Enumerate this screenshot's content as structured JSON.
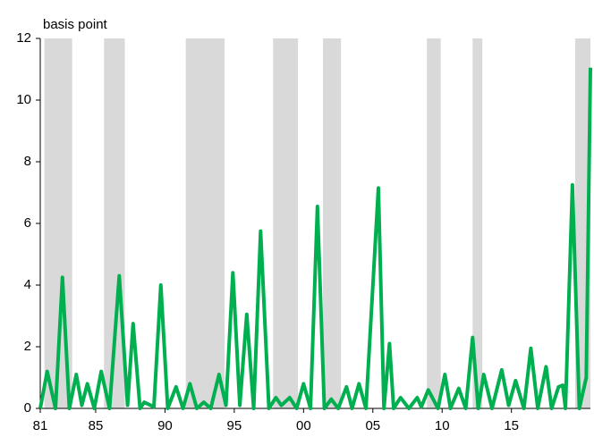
{
  "chart_data": {
    "type": "line",
    "y_label": "basis point",
    "color": "#00b050",
    "shade_color": "#d9d9d9",
    "x": [
      1981.0,
      1981.5,
      1982.1,
      1982.6,
      1983.1,
      1983.6,
      1984.0,
      1984.4,
      1984.9,
      1985.4,
      1986.0,
      1986.7,
      1987.3,
      1987.7,
      1988.2,
      1988.5,
      1989.2,
      1989.7,
      1990.2,
      1990.8,
      1991.3,
      1991.8,
      1992.3,
      1992.8,
      1993.3,
      1993.9,
      1994.4,
      1994.9,
      1995.4,
      1995.9,
      1996.4,
      1996.9,
      1997.5,
      1998.0,
      1998.4,
      1999.0,
      1999.5,
      2000.0,
      2000.5,
      2001.0,
      2001.5,
      2002.0,
      2002.5,
      2003.1,
      2003.5,
      2004.0,
      2004.5,
      2005.4,
      2005.8,
      2006.2,
      2006.5,
      2007.0,
      2007.6,
      2008.2,
      2008.5,
      2009.0,
      2009.7,
      2010.2,
      2010.6,
      2011.2,
      2011.7,
      2012.2,
      2012.6,
      2013.0,
      2013.6,
      2014.3,
      2014.8,
      2015.3,
      2015.9,
      2016.4,
      2016.9,
      2017.5,
      2017.9,
      2018.4,
      2018.7,
      2018.9,
      2019.4,
      2019.9,
      2020.4,
      2020.7
    ],
    "values": [
      0,
      1.2,
      0,
      4.25,
      0,
      1.1,
      0.1,
      0.8,
      0,
      1.2,
      0,
      4.3,
      0.1,
      2.75,
      0,
      0.2,
      0.05,
      4.0,
      0,
      0.7,
      0,
      0.8,
      0,
      0.2,
      0,
      1.1,
      0.1,
      4.4,
      0.1,
      3.05,
      0,
      5.75,
      0,
      0.35,
      0.1,
      0.35,
      0,
      0.8,
      0,
      6.55,
      0,
      0.3,
      0,
      0.7,
      0,
      0.8,
      0,
      7.15,
      0,
      2.1,
      0,
      0.35,
      0,
      0.35,
      0.05,
      0.6,
      0,
      1.1,
      0,
      0.65,
      0,
      2.3,
      0,
      1.1,
      0,
      1.25,
      0.1,
      0.9,
      0,
      1.95,
      0,
      1.35,
      0,
      0.7,
      0.75,
      0,
      7.25,
      0,
      1.0,
      11.05
    ],
    "shaded": [
      [
        1981.3,
        1983.3
      ],
      [
        1985.6,
        1987.1
      ],
      [
        1991.5,
        1994.3
      ],
      [
        1997.8,
        1999.6
      ],
      [
        2001.4,
        2002.7
      ],
      [
        2008.9,
        2009.9
      ],
      [
        2012.2,
        2012.9
      ],
      [
        2019.6,
        2020.7
      ]
    ],
    "xlim": [
      1981,
      2020.7
    ],
    "xticks": [
      {
        "value": 1981,
        "label": "81"
      },
      {
        "value": 1985,
        "label": "85"
      },
      {
        "value": 1990,
        "label": "90"
      },
      {
        "value": 1995,
        "label": "95"
      },
      {
        "value": 2000,
        "label": "00"
      },
      {
        "value": 2005,
        "label": "05"
      },
      {
        "value": 2010,
        "label": "10"
      },
      {
        "value": 2015,
        "label": "15"
      }
    ],
    "ylim": [
      0,
      12
    ],
    "yticks": [
      0,
      2,
      4,
      6,
      8,
      10,
      12
    ]
  }
}
